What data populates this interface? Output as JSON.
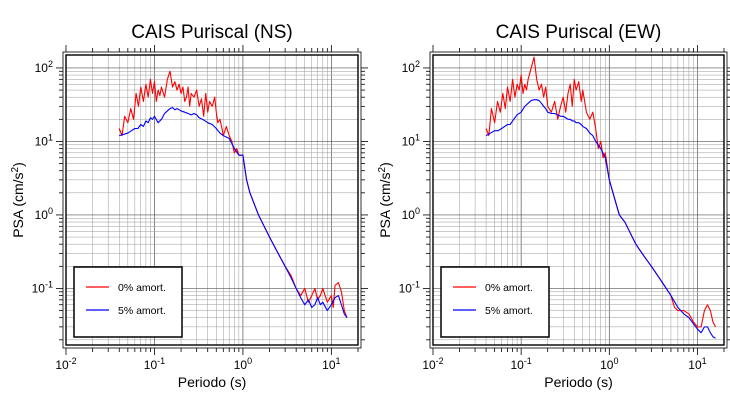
{
  "chart_data": [
    {
      "type": "line",
      "title": "CAIS Puriscal (NS)",
      "xlabel": "Periodo (s)",
      "ylabel": "PSA (cm/s²)",
      "xscale": "log",
      "yscale": "log",
      "xlim": [
        0.01,
        20
      ],
      "ylim": [
        0.017,
        150
      ],
      "grid": true,
      "legend": "bottom-left",
      "x_ticks": [
        "10⁻²",
        "10⁻¹",
        "10⁰",
        "10¹"
      ],
      "y_ticks": [
        "10⁻¹",
        "10⁰",
        "10¹",
        "10²"
      ],
      "series": [
        {
          "name": "0% amort.",
          "color": "#ff0000",
          "points": [
            [
              0.04,
              15
            ],
            [
              0.043,
              12
            ],
            [
              0.046,
              22
            ],
            [
              0.05,
              18
            ],
            [
              0.054,
              28
            ],
            [
              0.058,
              20
            ],
            [
              0.062,
              45
            ],
            [
              0.066,
              30
            ],
            [
              0.07,
              55
            ],
            [
              0.075,
              35
            ],
            [
              0.08,
              60
            ],
            [
              0.085,
              40
            ],
            [
              0.09,
              70
            ],
            [
              0.095,
              45
            ],
            [
              0.1,
              65
            ],
            [
              0.105,
              35
            ],
            [
              0.11,
              50
            ],
            [
              0.115,
              42
            ],
            [
              0.12,
              55
            ],
            [
              0.13,
              40
            ],
            [
              0.14,
              70
            ],
            [
              0.15,
              90
            ],
            [
              0.16,
              55
            ],
            [
              0.17,
              65
            ],
            [
              0.18,
              50
            ],
            [
              0.19,
              60
            ],
            [
              0.2,
              45
            ],
            [
              0.21,
              55
            ],
            [
              0.22,
              35
            ],
            [
              0.23,
              40
            ],
            [
              0.24,
              55
            ],
            [
              0.25,
              30
            ],
            [
              0.26,
              45
            ],
            [
              0.28,
              40
            ],
            [
              0.3,
              50
            ],
            [
              0.32,
              30
            ],
            [
              0.34,
              38
            ],
            [
              0.36,
              22
            ],
            [
              0.38,
              45
            ],
            [
              0.4,
              25
            ],
            [
              0.42,
              35
            ],
            [
              0.45,
              30
            ],
            [
              0.48,
              40
            ],
            [
              0.5,
              25
            ],
            [
              0.52,
              18
            ],
            [
              0.55,
              20
            ],
            [
              0.58,
              15
            ],
            [
              0.6,
              12
            ],
            [
              0.65,
              16
            ],
            [
              0.7,
              12
            ],
            [
              0.75,
              10
            ],
            [
              0.8,
              7
            ],
            [
              0.85,
              8
            ],
            [
              0.9,
              6.5
            ],
            [
              1.0,
              6.5
            ],
            [
              1.1,
              3
            ],
            [
              1.2,
              2
            ],
            [
              1.5,
              1
            ],
            [
              2,
              0.5
            ],
            [
              2.5,
              0.3
            ],
            [
              3,
              0.2
            ],
            [
              3.5,
              0.15
            ],
            [
              4,
              0.1
            ],
            [
              4.5,
              0.08
            ],
            [
              5,
              0.1
            ],
            [
              5.5,
              0.065
            ],
            [
              6,
              0.08
            ],
            [
              6.5,
              0.1
            ],
            [
              7,
              0.07
            ],
            [
              7.5,
              0.08
            ],
            [
              8,
              0.1
            ],
            [
              8.5,
              0.08
            ],
            [
              9,
              0.065
            ],
            [
              10,
              0.08
            ],
            [
              10.5,
              0.055
            ],
            [
              11,
              0.11
            ],
            [
              12,
              0.12
            ],
            [
              13,
              0.09
            ],
            [
              14,
              0.05
            ],
            [
              15,
              0.04
            ]
          ]
        },
        {
          "name": "5% amort.",
          "color": "#0000ff",
          "points": [
            [
              0.04,
              12
            ],
            [
              0.045,
              12.5
            ],
            [
              0.05,
              13
            ],
            [
              0.055,
              14
            ],
            [
              0.06,
              15
            ],
            [
              0.065,
              15
            ],
            [
              0.07,
              17
            ],
            [
              0.075,
              16
            ],
            [
              0.08,
              19
            ],
            [
              0.085,
              18
            ],
            [
              0.09,
              21
            ],
            [
              0.095,
              20
            ],
            [
              0.1,
              22
            ],
            [
              0.11,
              18
            ],
            [
              0.12,
              20
            ],
            [
              0.13,
              24
            ],
            [
              0.14,
              26
            ],
            [
              0.15,
              28
            ],
            [
              0.16,
              29
            ],
            [
              0.17,
              27
            ],
            [
              0.18,
              28
            ],
            [
              0.2,
              26
            ],
            [
              0.22,
              25
            ],
            [
              0.24,
              24
            ],
            [
              0.26,
              23
            ],
            [
              0.28,
              24
            ],
            [
              0.3,
              23
            ],
            [
              0.32,
              21
            ],
            [
              0.35,
              20
            ],
            [
              0.4,
              18
            ],
            [
              0.45,
              17
            ],
            [
              0.5,
              15
            ],
            [
              0.55,
              13
            ],
            [
              0.6,
              12
            ],
            [
              0.7,
              11
            ],
            [
              0.8,
              8
            ],
            [
              0.9,
              6.5
            ],
            [
              1.0,
              6.5
            ],
            [
              1.1,
              3
            ],
            [
              1.2,
              2
            ],
            [
              1.5,
              1
            ],
            [
              2,
              0.5
            ],
            [
              2.5,
              0.3
            ],
            [
              3,
              0.2
            ],
            [
              3.5,
              0.14
            ],
            [
              4,
              0.1
            ],
            [
              4.5,
              0.075
            ],
            [
              5,
              0.06
            ],
            [
              5.5,
              0.07
            ],
            [
              6,
              0.055
            ],
            [
              6.5,
              0.06
            ],
            [
              7,
              0.075
            ],
            [
              7.5,
              0.06
            ],
            [
              8,
              0.065
            ],
            [
              9,
              0.05
            ],
            [
              10,
              0.06
            ],
            [
              11,
              0.075
            ],
            [
              12,
              0.08
            ],
            [
              13,
              0.06
            ],
            [
              14,
              0.045
            ],
            [
              15,
              0.04
            ]
          ]
        }
      ]
    },
    {
      "type": "line",
      "title": "CAIS Puriscal (EW)",
      "xlabel": "Periodo (s)",
      "ylabel": "PSA (cm/s²)",
      "xscale": "log",
      "yscale": "log",
      "xlim": [
        0.01,
        20
      ],
      "ylim": [
        0.017,
        150
      ],
      "grid": true,
      "legend": "bottom-left",
      "x_ticks": [
        "10⁻²",
        "10⁻¹",
        "10⁰",
        "10¹"
      ],
      "y_ticks": [
        "10⁻¹",
        "10⁰",
        "10¹",
        "10²"
      ],
      "series": [
        {
          "name": "0% amort.",
          "color": "#ff0000",
          "points": [
            [
              0.04,
              15
            ],
            [
              0.043,
              12
            ],
            [
              0.046,
              28
            ],
            [
              0.05,
              18
            ],
            [
              0.054,
              35
            ],
            [
              0.058,
              25
            ],
            [
              0.062,
              45
            ],
            [
              0.066,
              28
            ],
            [
              0.07,
              55
            ],
            [
              0.075,
              35
            ],
            [
              0.08,
              70
            ],
            [
              0.085,
              40
            ],
            [
              0.09,
              60
            ],
            [
              0.095,
              50
            ],
            [
              0.1,
              80
            ],
            [
              0.105,
              45
            ],
            [
              0.11,
              60
            ],
            [
              0.115,
              50
            ],
            [
              0.12,
              70
            ],
            [
              0.13,
              100
            ],
            [
              0.14,
              140
            ],
            [
              0.15,
              70
            ],
            [
              0.16,
              50
            ],
            [
              0.17,
              60
            ],
            [
              0.18,
              40
            ],
            [
              0.19,
              55
            ],
            [
              0.2,
              30
            ],
            [
              0.22,
              25
            ],
            [
              0.24,
              35
            ],
            [
              0.26,
              20
            ],
            [
              0.28,
              30
            ],
            [
              0.3,
              40
            ],
            [
              0.32,
              25
            ],
            [
              0.34,
              45
            ],
            [
              0.36,
              60
            ],
            [
              0.38,
              30
            ],
            [
              0.4,
              70
            ],
            [
              0.42,
              50
            ],
            [
              0.45,
              65
            ],
            [
              0.48,
              35
            ],
            [
              0.5,
              50
            ],
            [
              0.55,
              25
            ],
            [
              0.6,
              20
            ],
            [
              0.65,
              25
            ],
            [
              0.7,
              15
            ],
            [
              0.75,
              8
            ],
            [
              0.8,
              10
            ],
            [
              0.85,
              6
            ],
            [
              0.9,
              7
            ],
            [
              1.0,
              3
            ],
            [
              1.1,
              2
            ],
            [
              1.3,
              1
            ],
            [
              1.5,
              0.8
            ],
            [
              2,
              0.4
            ],
            [
              2.5,
              0.27
            ],
            [
              3,
              0.2
            ],
            [
              4,
              0.12
            ],
            [
              5,
              0.08
            ],
            [
              5.5,
              0.055
            ],
            [
              6,
              0.05
            ],
            [
              7,
              0.05
            ],
            [
              8,
              0.045
            ],
            [
              9,
              0.035
            ],
            [
              10,
              0.03
            ],
            [
              11,
              0.03
            ],
            [
              12,
              0.05
            ],
            [
              13,
              0.06
            ],
            [
              14,
              0.05
            ],
            [
              15,
              0.035
            ],
            [
              16,
              0.03
            ]
          ]
        },
        {
          "name": "5% amort.",
          "color": "#0000ff",
          "points": [
            [
              0.04,
              12
            ],
            [
              0.045,
              13
            ],
            [
              0.05,
              14
            ],
            [
              0.055,
              14
            ],
            [
              0.06,
              15
            ],
            [
              0.065,
              16
            ],
            [
              0.07,
              17
            ],
            [
              0.075,
              17
            ],
            [
              0.08,
              19
            ],
            [
              0.085,
              21
            ],
            [
              0.09,
              23
            ],
            [
              0.1,
              25
            ],
            [
              0.11,
              30
            ],
            [
              0.12,
              33
            ],
            [
              0.13,
              36
            ],
            [
              0.14,
              37
            ],
            [
              0.15,
              37
            ],
            [
              0.16,
              36
            ],
            [
              0.17,
              33
            ],
            [
              0.18,
              30
            ],
            [
              0.19,
              28
            ],
            [
              0.2,
              25
            ],
            [
              0.22,
              24
            ],
            [
              0.24,
              24
            ],
            [
              0.26,
              23
            ],
            [
              0.28,
              22
            ],
            [
              0.3,
              22
            ],
            [
              0.32,
              21
            ],
            [
              0.34,
              20
            ],
            [
              0.36,
              20
            ],
            [
              0.38,
              19
            ],
            [
              0.4,
              19
            ],
            [
              0.42,
              18
            ],
            [
              0.45,
              18
            ],
            [
              0.48,
              17
            ],
            [
              0.5,
              16
            ],
            [
              0.55,
              15
            ],
            [
              0.6,
              13
            ],
            [
              0.65,
              12
            ],
            [
              0.7,
              10
            ],
            [
              0.8,
              8
            ],
            [
              0.9,
              6
            ],
            [
              1.0,
              3
            ],
            [
              1.1,
              2
            ],
            [
              1.3,
              1
            ],
            [
              1.5,
              0.8
            ],
            [
              2,
              0.4
            ],
            [
              2.5,
              0.27
            ],
            [
              3,
              0.2
            ],
            [
              4,
              0.12
            ],
            [
              5,
              0.08
            ],
            [
              6,
              0.055
            ],
            [
              7,
              0.045
            ],
            [
              8,
              0.04
            ],
            [
              9,
              0.033
            ],
            [
              10,
              0.028
            ],
            [
              11,
              0.025
            ],
            [
              12,
              0.03
            ],
            [
              13,
              0.03
            ],
            [
              14,
              0.025
            ],
            [
              15,
              0.022
            ],
            [
              16,
              0.021
            ]
          ]
        }
      ]
    }
  ]
}
